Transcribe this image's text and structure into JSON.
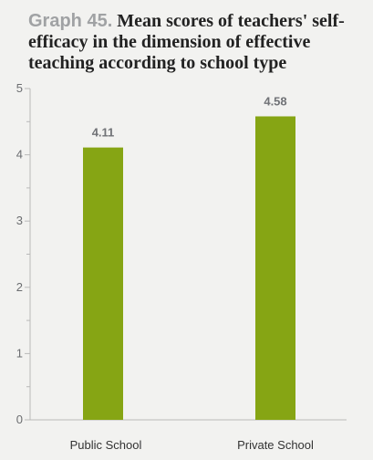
{
  "chart_title": {
    "number": "Graph 45.",
    "text": "Mean scores of teachers' self-efficacy in the dimension of effective teaching according to school type"
  },
  "chart_data": {
    "type": "bar",
    "categories": [
      "Public School",
      "Private School"
    ],
    "values": [
      4.11,
      4.58
    ],
    "data_labels": [
      "4.11",
      "4.58"
    ],
    "xlabel": "",
    "ylabel": "",
    "ylim": [
      0,
      5
    ],
    "yticks": [
      "0",
      "1",
      "2",
      "3",
      "4",
      "5"
    ],
    "grid": false,
    "legend": "none"
  },
  "colors": {
    "bar": "#86a514",
    "axis": "#b9b9b9",
    "tick_text": "#6b6d70",
    "label_text": "#707276",
    "category_text": "#333333",
    "background": "#f2f2f0"
  }
}
